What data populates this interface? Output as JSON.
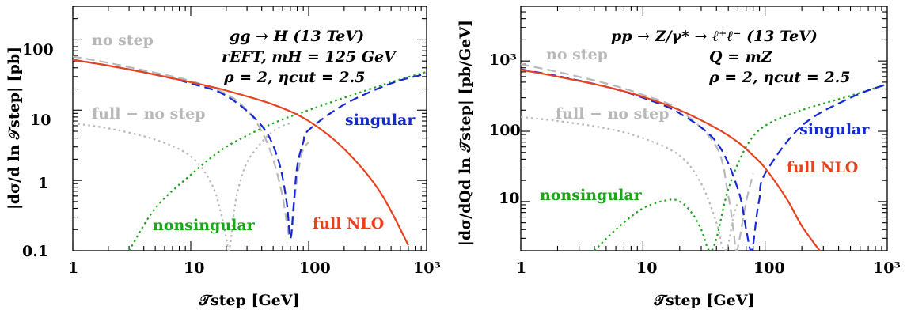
{
  "colors": {
    "full_nlo": "#e8411e",
    "singular": "#1428d8",
    "nonsingular": "#1aa51a",
    "no_step": "#b8b8b8",
    "full_minus_no_step": "#b8b8b8"
  },
  "chart_data": [
    {
      "type": "line",
      "xscale": "log",
      "yscale": "log",
      "xlim": [
        1,
        1000
      ],
      "ylim": [
        0.1,
        300
      ],
      "xlabel": "𝒯step [GeV]",
      "ylabel": "|dσ/d ln 𝒯step| [pb]",
      "x_ticks": [
        "1",
        "10",
        "100",
        "10³"
      ],
      "y_ticks": [
        "0.1",
        "1",
        "10",
        "100"
      ],
      "annotations": [
        "gg → H (13 TeV)",
        "rEFT, mH = 125 GeV",
        "ρ = 2, ηcut = 2.5"
      ],
      "series": [
        {
          "name": "full NLO",
          "style": "solid",
          "x": [
            1,
            2,
            5,
            10,
            20,
            50,
            100,
            200,
            400,
            700
          ],
          "y": [
            52,
            43,
            32,
            25,
            19,
            12,
            7,
            2.8,
            0.7,
            0.12
          ]
        },
        {
          "name": "singular",
          "style": "dashed",
          "x": [
            1,
            2,
            5,
            10,
            20,
            40,
            55,
            65,
            70,
            75,
            80,
            90,
            100,
            200,
            500,
            1000
          ],
          "y": [
            52,
            43,
            32,
            24,
            16,
            6,
            2,
            0.5,
            0.15,
            0.5,
            1.6,
            3.5,
            5.2,
            12,
            24,
            33
          ]
        },
        {
          "name": "no step",
          "style": "dashed",
          "x": [
            1,
            2,
            5,
            10,
            20,
            30,
            40,
            50,
            60,
            70,
            78,
            88,
            100
          ],
          "y": [
            58,
            47,
            34,
            26,
            17,
            10,
            5,
            2,
            0.6,
            0.15,
            0.8,
            2.5,
            3.5
          ]
        },
        {
          "name": "nonsingular",
          "style": "dotted",
          "x": [
            3,
            5,
            10,
            20,
            50,
            100,
            200,
            500,
            1000
          ],
          "y": [
            0.1,
            0.4,
            1.2,
            3,
            6.5,
            10,
            15,
            25,
            35
          ]
        },
        {
          "name": "full − no step",
          "style": "dotted",
          "x": [
            1,
            2,
            5,
            10,
            15,
            18,
            20,
            21,
            22,
            23,
            25,
            30,
            40,
            50,
            60,
            70
          ],
          "y": [
            6.5,
            5.5,
            3.8,
            2.2,
            0.9,
            0.35,
            0.15,
            0.1,
            0.15,
            0.3,
            0.7,
            1.8,
            3.5,
            5,
            6,
            6.5
          ]
        }
      ]
    },
    {
      "type": "line",
      "xscale": "log",
      "yscale": "log",
      "xlim": [
        1,
        1000
      ],
      "ylim": [
        2,
        6000
      ],
      "xlabel": "𝒯step [GeV]",
      "ylabel": "|dσ/dQd ln 𝒯step| [pb/GeV]",
      "x_ticks": [
        "1",
        "10",
        "100",
        "10³"
      ],
      "y_ticks": [
        "10",
        "100",
        "10³"
      ],
      "annotations": [
        "pp → Z/γ* → ℓ⁺ℓ⁻ (13 TeV)",
        "Q = mZ",
        "ρ = 2, ηcut = 2.5"
      ],
      "series": [
        {
          "name": "full NLO",
          "style": "solid",
          "x": [
            1,
            2,
            5,
            10,
            20,
            40,
            60,
            80,
            100,
            150,
            200,
            280
          ],
          "y": [
            750,
            600,
            430,
            310,
            200,
            110,
            70,
            45,
            30,
            11,
            4.5,
            2
          ]
        },
        {
          "name": "singular",
          "style": "dashed",
          "x": [
            1,
            2,
            5,
            10,
            20,
            40,
            60,
            70,
            76,
            80,
            85,
            90,
            100,
            200,
            500,
            1000
          ],
          "y": [
            760,
            610,
            430,
            300,
            180,
            70,
            15,
            4,
            2,
            2.5,
            6,
            11,
            25,
            120,
            300,
            470
          ]
        },
        {
          "name": "no step",
          "style": "dashed",
          "x": [
            1,
            2,
            5,
            10,
            20,
            40,
            50,
            55,
            58,
            62,
            70,
            80
          ],
          "y": [
            900,
            700,
            480,
            330,
            200,
            60,
            12,
            4,
            2,
            3,
            10,
            25
          ]
        },
        {
          "name": "nonsingular",
          "style": "dotted",
          "x": [
            4,
            6,
            10,
            16,
            20,
            25,
            30,
            35,
            40,
            50,
            70,
            100,
            200,
            500,
            1000
          ],
          "y": [
            2,
            4,
            8,
            10.5,
            10,
            7,
            4,
            2,
            3,
            15,
            60,
            120,
            200,
            320,
            470
          ]
        },
        {
          "name": "full − no step",
          "style": "dotted",
          "x": [
            1,
            2,
            5,
            10,
            20,
            30,
            40,
            44,
            47,
            50,
            55,
            60
          ],
          "y": [
            160,
            140,
            110,
            80,
            45,
            18,
            5,
            2.5,
            2,
            2.5,
            6,
            10
          ]
        }
      ]
    }
  ]
}
